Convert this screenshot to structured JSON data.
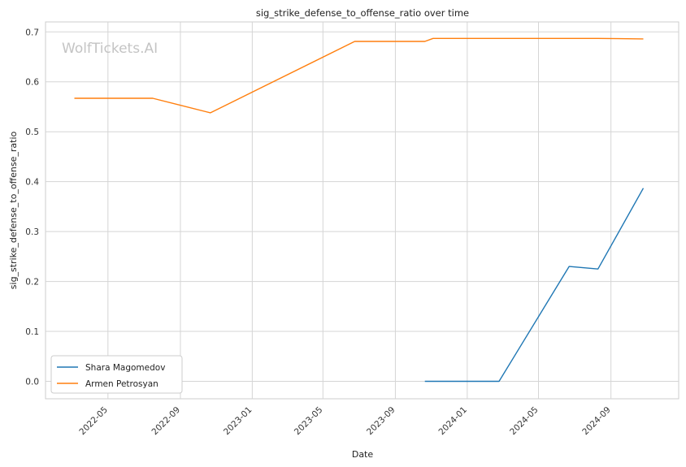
{
  "watermark": "WolfTickets.AI",
  "chart_data": {
    "type": "line",
    "title": "sig_strike_defense_to_offense_ratio over time",
    "xlabel": "Date",
    "ylabel": "sig_strike_defense_to_offense_ratio",
    "x_range": [
      "2022-01-15",
      "2024-12-25"
    ],
    "ylim": [
      -0.035,
      0.72
    ],
    "x_ticks": [
      "2022-05-01",
      "2022-09-01",
      "2023-01-01",
      "2023-05-01",
      "2023-09-01",
      "2024-01-01",
      "2024-05-01",
      "2024-09-01"
    ],
    "x_tick_labels": [
      "2022-05",
      "2022-09",
      "2023-01",
      "2023-05",
      "2023-09",
      "2024-01",
      "2024-05",
      "2024-09"
    ],
    "y_ticks": [
      0.0,
      0.1,
      0.2,
      0.3,
      0.4,
      0.5,
      0.6,
      0.7
    ],
    "y_tick_labels": [
      "0.0",
      "0.1",
      "0.2",
      "0.3",
      "0.4",
      "0.5",
      "0.6",
      "0.7"
    ],
    "grid": true,
    "legend_position": "lower-left",
    "series": [
      {
        "name": "Shara Magomedov",
        "color": "#1f77b4",
        "x": [
          "2023-10-21",
          "2024-02-24",
          "2024-06-22",
          "2024-08-10",
          "2024-10-26"
        ],
        "y": [
          0.0,
          0.0,
          0.23,
          0.225,
          0.387
        ]
      },
      {
        "name": "Armen Petrosyan",
        "color": "#ff7f0e",
        "x": [
          "2022-03-05",
          "2022-07-16",
          "2022-10-22",
          "2023-06-24",
          "2023-10-21",
          "2023-11-04",
          "2024-08-10",
          "2024-10-26"
        ],
        "y": [
          0.567,
          0.567,
          0.538,
          0.681,
          0.681,
          0.687,
          0.687,
          0.686
        ]
      }
    ]
  }
}
